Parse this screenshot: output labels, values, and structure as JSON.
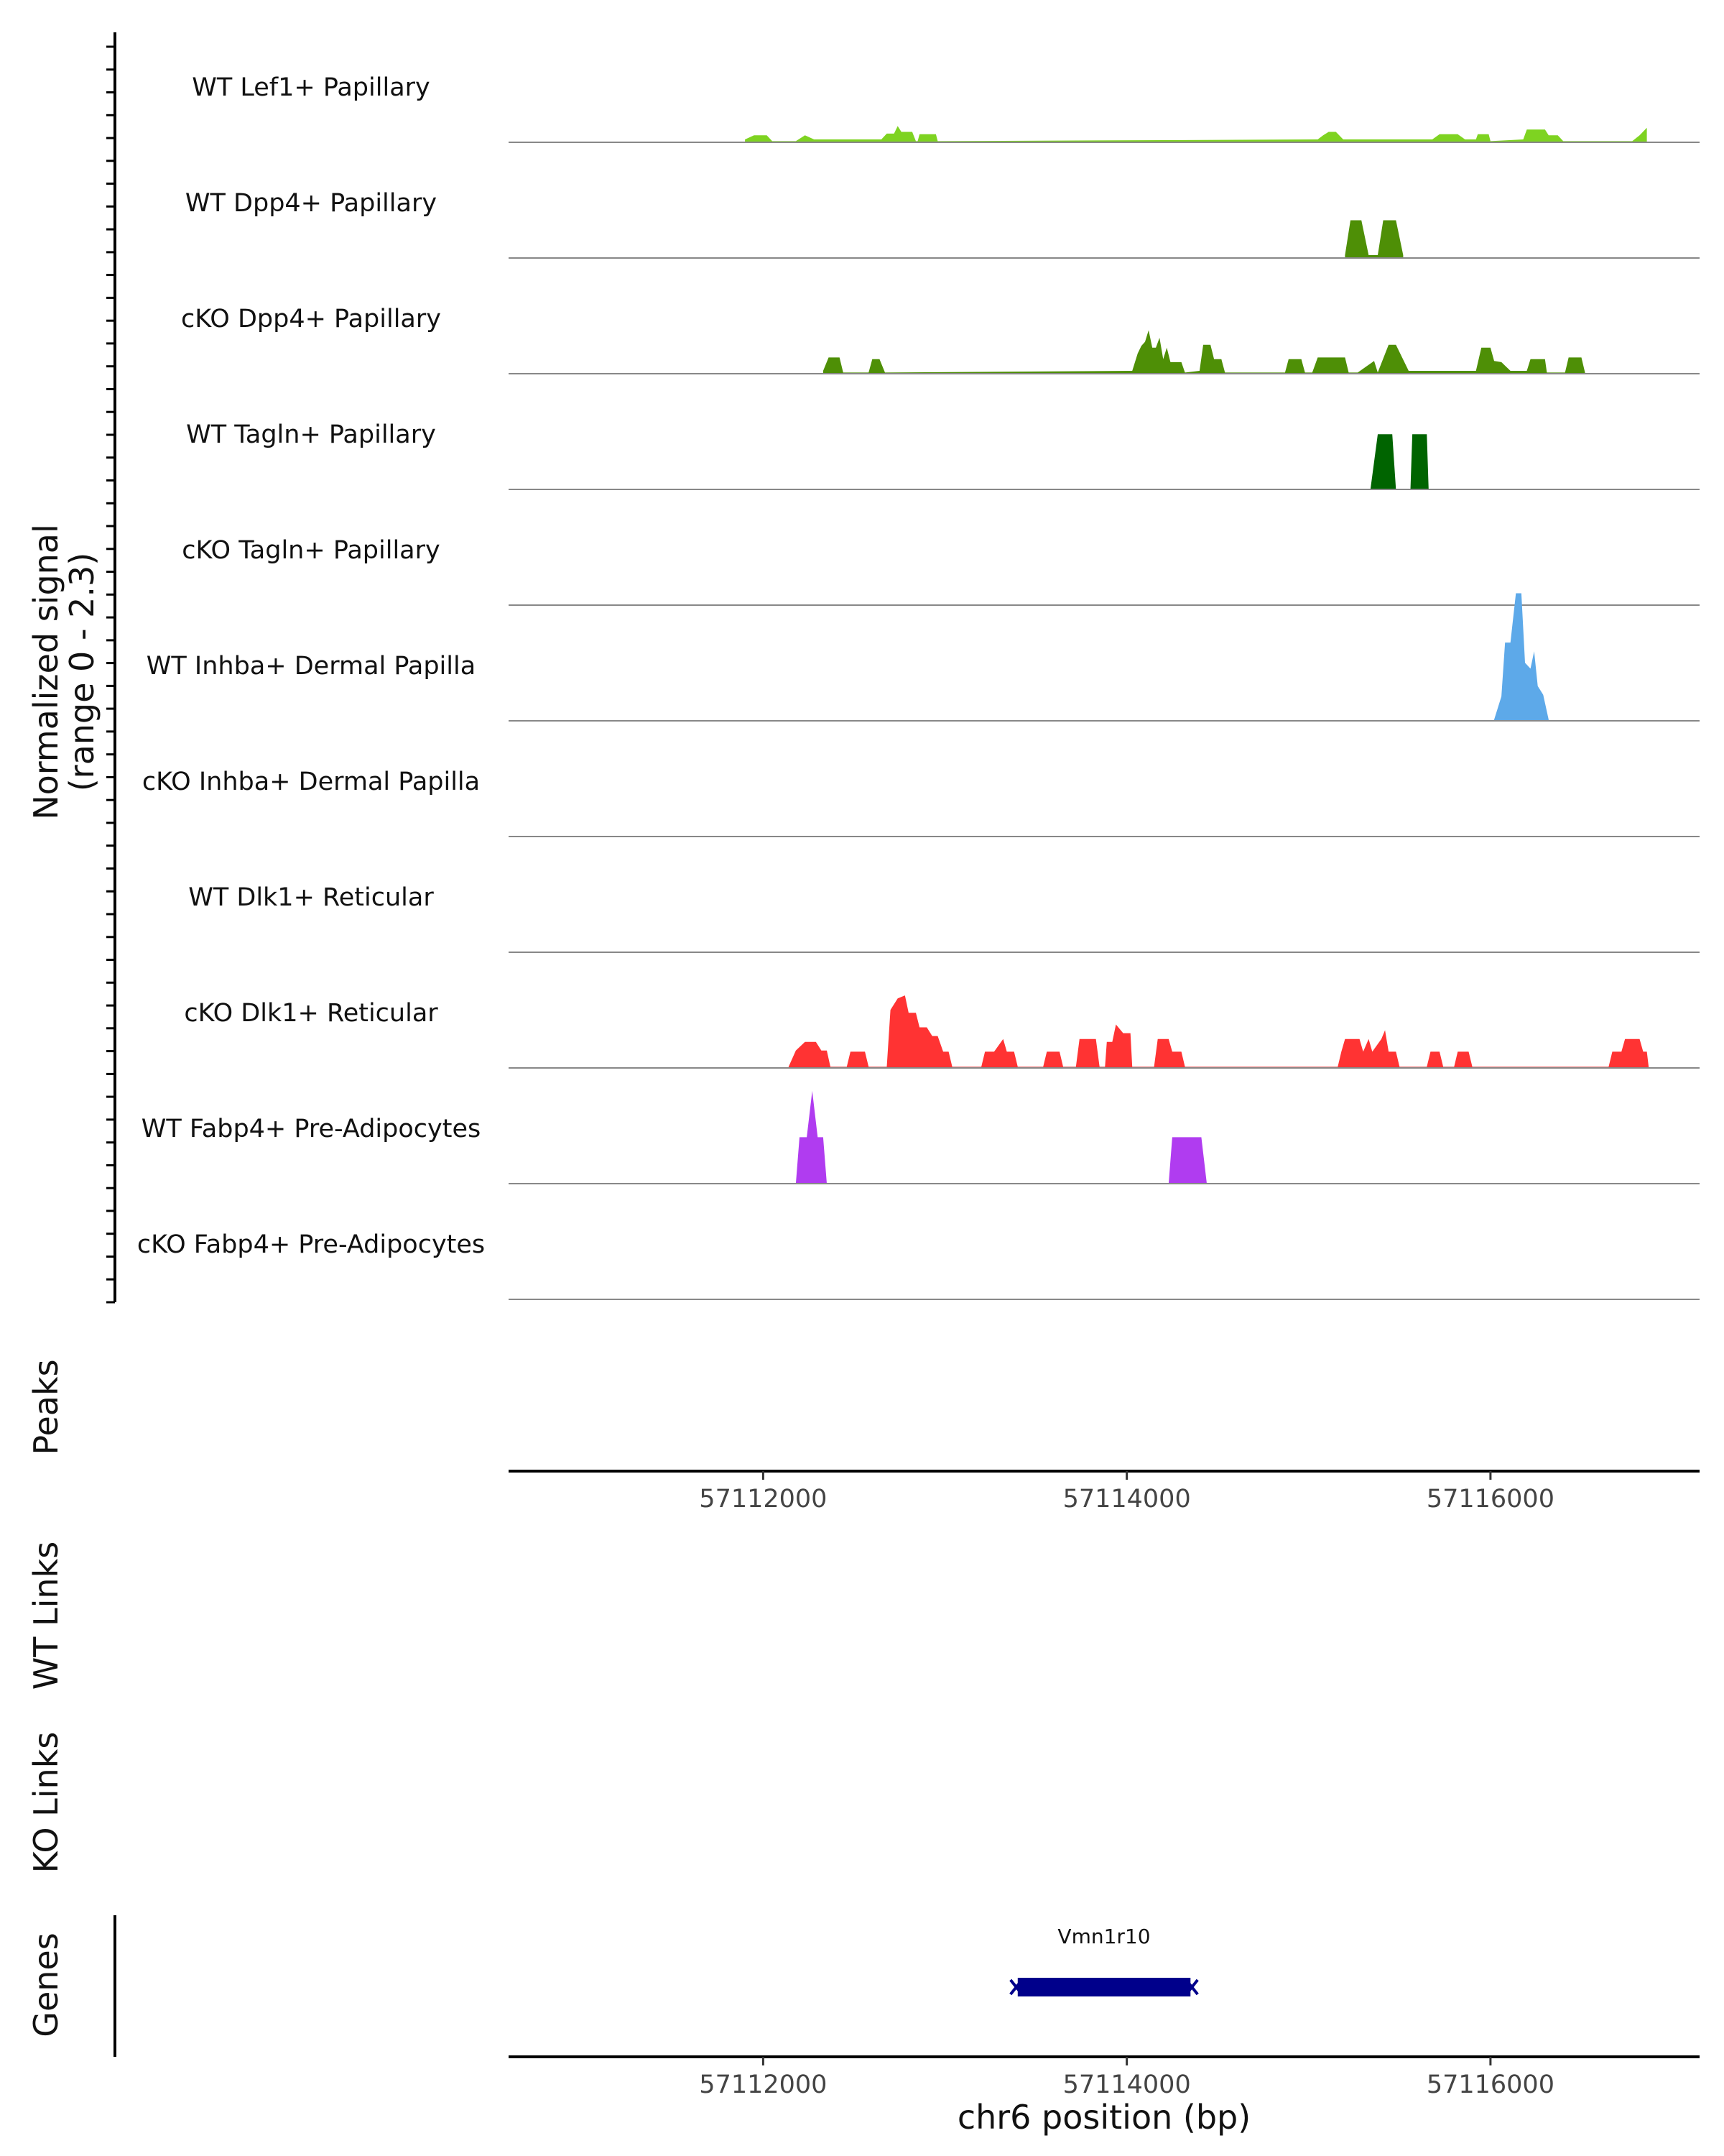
{
  "chart_data": {
    "type": "area",
    "title": "",
    "ylabel": "Normalized signal",
    "ylabel_range": "(range 0 - 2.3)",
    "ylim": [
      0,
      2.3
    ],
    "xlabel": "chr6 position (bp)",
    "xlim": [
      57110600,
      57117150
    ],
    "x_ticks": [
      57112000,
      57114000,
      57116000
    ],
    "x_tick_labels": [
      "57112000",
      "57114000",
      "57116000"
    ],
    "series": [
      {
        "name": "WT Lef1+ Papillary",
        "color": "#7ED321",
        "points": [
          [
            57111900,
            0.05
          ],
          [
            57111950,
            0.12
          ],
          [
            57112020,
            0.12
          ],
          [
            57112050,
            0.02
          ],
          [
            57112180,
            0.02
          ],
          [
            57112230,
            0.12
          ],
          [
            57112280,
            0.05
          ],
          [
            57112650,
            0.05
          ],
          [
            57112680,
            0.15
          ],
          [
            57112720,
            0.15
          ],
          [
            57112740,
            0.28
          ],
          [
            57112760,
            0.18
          ],
          [
            57112820,
            0.18
          ],
          [
            57112840,
            0.02
          ],
          [
            57112850,
            0.02
          ],
          [
            57112860,
            0.14
          ],
          [
            57112950,
            0.14
          ],
          [
            57112960,
            0.02
          ],
          [
            57115050,
            0.05
          ],
          [
            57115080,
            0.12
          ],
          [
            57115110,
            0.18
          ],
          [
            57115150,
            0.18
          ],
          [
            57115190,
            0.05
          ],
          [
            57115680,
            0.05
          ],
          [
            57115720,
            0.14
          ],
          [
            57115820,
            0.14
          ],
          [
            57115860,
            0.05
          ],
          [
            57115920,
            0.05
          ],
          [
            57115930,
            0.14
          ],
          [
            57115990,
            0.14
          ],
          [
            57116000,
            0.02
          ],
          [
            57116180,
            0.05
          ],
          [
            57116200,
            0.22
          ],
          [
            57116300,
            0.22
          ],
          [
            57116320,
            0.12
          ],
          [
            57116370,
            0.12
          ],
          [
            57116400,
            0.02
          ],
          [
            57116780,
            0.02
          ],
          [
            57116820,
            0.12
          ],
          [
            57116860,
            0.25
          ],
          [
            57116860,
            0.0
          ]
        ]
      },
      {
        "name": "WT Dpp4+ Papillary",
        "color": "#4E8F06",
        "points": [
          [
            57115200,
            0.05
          ],
          [
            57115230,
            0.65
          ],
          [
            57115290,
            0.65
          ],
          [
            57115330,
            0.05
          ],
          [
            57115380,
            0.05
          ],
          [
            57115410,
            0.65
          ],
          [
            57115480,
            0.65
          ],
          [
            57115520,
            0.05
          ]
        ]
      },
      {
        "name": "cKO Dpp4+ Papillary",
        "color": "#4E8F06",
        "points": [
          [
            57112330,
            0.05
          ],
          [
            57112360,
            0.28
          ],
          [
            57112420,
            0.28
          ],
          [
            57112440,
            0.02
          ],
          [
            57112580,
            0.02
          ],
          [
            57112600,
            0.25
          ],
          [
            57112640,
            0.25
          ],
          [
            57112670,
            0.02
          ],
          [
            57114030,
            0.05
          ],
          [
            57114060,
            0.35
          ],
          [
            57114080,
            0.48
          ],
          [
            57114100,
            0.55
          ],
          [
            57114120,
            0.75
          ],
          [
            57114140,
            0.45
          ],
          [
            57114160,
            0.45
          ],
          [
            57114180,
            0.62
          ],
          [
            57114200,
            0.25
          ],
          [
            57114220,
            0.45
          ],
          [
            57114240,
            0.2
          ],
          [
            57114300,
            0.2
          ],
          [
            57114320,
            0.02
          ],
          [
            57114400,
            0.05
          ],
          [
            57114420,
            0.5
          ],
          [
            57114460,
            0.5
          ],
          [
            57114480,
            0.25
          ],
          [
            57114520,
            0.25
          ],
          [
            57114540,
            0.02
          ],
          [
            57114870,
            0.02
          ],
          [
            57114890,
            0.25
          ],
          [
            57114960,
            0.25
          ],
          [
            57114980,
            0.02
          ],
          [
            57115020,
            0.02
          ],
          [
            57115050,
            0.28
          ],
          [
            57115200,
            0.28
          ],
          [
            57115220,
            0.02
          ],
          [
            57115270,
            0.02
          ],
          [
            57115360,
            0.22
          ],
          [
            57115380,
            0.02
          ],
          [
            57115390,
            0.1
          ],
          [
            57115440,
            0.5
          ],
          [
            57115480,
            0.5
          ],
          [
            57115550,
            0.05
          ],
          [
            57115920,
            0.05
          ],
          [
            57115950,
            0.45
          ],
          [
            57116000,
            0.45
          ],
          [
            57116020,
            0.22
          ],
          [
            57116060,
            0.2
          ],
          [
            57116110,
            0.05
          ],
          [
            57116200,
            0.05
          ],
          [
            57116220,
            0.25
          ],
          [
            57116300,
            0.25
          ],
          [
            57116310,
            0.02
          ],
          [
            57116410,
            0.02
          ],
          [
            57116430,
            0.28
          ],
          [
            57116500,
            0.28
          ],
          [
            57116520,
            0.02
          ]
        ]
      },
      {
        "name": "WT Tagln+ Papillary",
        "color": "#006400",
        "points": [
          [
            57115340,
            0.0
          ],
          [
            57115380,
            0.95
          ],
          [
            57115460,
            0.95
          ],
          [
            57115480,
            0.0
          ],
          [
            57115560,
            0.0
          ],
          [
            57115570,
            0.95
          ],
          [
            57115650,
            0.95
          ],
          [
            57115660,
            0.0
          ]
        ]
      },
      {
        "name": "cKO Tagln+ Papillary",
        "color": "#2E8B57",
        "points": []
      },
      {
        "name": "WT Inhba+ Dermal Papilla",
        "color": "#5DA9E9",
        "points": [
          [
            57116020,
            0.02
          ],
          [
            57116060,
            0.42
          ],
          [
            57116080,
            1.35
          ],
          [
            57116110,
            1.35
          ],
          [
            57116140,
            2.2
          ],
          [
            57116170,
            2.2
          ],
          [
            57116190,
            1.0
          ],
          [
            57116220,
            0.9
          ],
          [
            57116240,
            1.2
          ],
          [
            57116260,
            0.6
          ],
          [
            57116290,
            0.45
          ],
          [
            57116320,
            0.02
          ]
        ]
      },
      {
        "name": "cKO Inhba+ Dermal Papilla",
        "color": "#5DA9E9",
        "points": []
      },
      {
        "name": "WT Dlk1+ Reticular",
        "color": "#FF3333",
        "points": []
      },
      {
        "name": "cKO Dlk1+ Reticular",
        "color": "#FF3333",
        "points": [
          [
            57112140,
            0.02
          ],
          [
            57112180,
            0.3
          ],
          [
            57112230,
            0.45
          ],
          [
            57112290,
            0.45
          ],
          [
            57112320,
            0.3
          ],
          [
            57112350,
            0.3
          ],
          [
            57112370,
            0.02
          ],
          [
            57112460,
            0.02
          ],
          [
            57112480,
            0.28
          ],
          [
            57112560,
            0.28
          ],
          [
            57112580,
            0.02
          ],
          [
            57112680,
            0.02
          ],
          [
            57112700,
            1.0
          ],
          [
            57112740,
            1.2
          ],
          [
            57112780,
            1.25
          ],
          [
            57112800,
            0.95
          ],
          [
            57112840,
            0.95
          ],
          [
            57112860,
            0.7
          ],
          [
            57112900,
            0.7
          ],
          [
            57112930,
            0.55
          ],
          [
            57112960,
            0.55
          ],
          [
            57112990,
            0.28
          ],
          [
            57113020,
            0.28
          ],
          [
            57113040,
            0.02
          ],
          [
            57113200,
            0.02
          ],
          [
            57113220,
            0.28
          ],
          [
            57113270,
            0.28
          ],
          [
            57113320,
            0.5
          ],
          [
            57113340,
            0.28
          ],
          [
            57113380,
            0.28
          ],
          [
            57113400,
            0.02
          ],
          [
            57113540,
            0.02
          ],
          [
            57113560,
            0.28
          ],
          [
            57113630,
            0.28
          ],
          [
            57113650,
            0.02
          ],
          [
            57113720,
            0.02
          ],
          [
            57113740,
            0.5
          ],
          [
            57113830,
            0.5
          ],
          [
            57113850,
            0.02
          ],
          [
            57113880,
            0.02
          ],
          [
            57113890,
            0.45
          ],
          [
            57113920,
            0.45
          ],
          [
            57113940,
            0.75
          ],
          [
            57113980,
            0.6
          ],
          [
            57114020,
            0.6
          ],
          [
            57114030,
            0.02
          ],
          [
            57114150,
            0.02
          ],
          [
            57114170,
            0.5
          ],
          [
            57114230,
            0.5
          ],
          [
            57114250,
            0.28
          ],
          [
            57114300,
            0.28
          ],
          [
            57114320,
            0.02
          ],
          [
            57115160,
            0.02
          ],
          [
            57115180,
            0.28
          ],
          [
            57115200,
            0.5
          ],
          [
            57115280,
            0.5
          ],
          [
            57115300,
            0.28
          ],
          [
            57115330,
            0.5
          ],
          [
            57115350,
            0.28
          ],
          [
            57115400,
            0.5
          ],
          [
            57115420,
            0.65
          ],
          [
            57115440,
            0.28
          ],
          [
            57115480,
            0.28
          ],
          [
            57115500,
            0.02
          ],
          [
            57115650,
            0.02
          ],
          [
            57115670,
            0.28
          ],
          [
            57115720,
            0.28
          ],
          [
            57115740,
            0.02
          ],
          [
            57115800,
            0.02
          ],
          [
            57115820,
            0.28
          ],
          [
            57115880,
            0.28
          ],
          [
            57115900,
            0.02
          ],
          [
            57116650,
            0.02
          ],
          [
            57116670,
            0.28
          ],
          [
            57116720,
            0.28
          ],
          [
            57116740,
            0.5
          ],
          [
            57116820,
            0.5
          ],
          [
            57116840,
            0.28
          ],
          [
            57116860,
            0.28
          ],
          [
            57116870,
            0.02
          ]
        ]
      },
      {
        "name": "WT Fabp4+ Pre-Adipocytes",
        "color": "#B03CF0",
        "points": [
          [
            57112180,
            0.0
          ],
          [
            57112200,
            0.8
          ],
          [
            57112240,
            0.8
          ],
          [
            57112270,
            1.6
          ],
          [
            57112300,
            0.8
          ],
          [
            57112330,
            0.8
          ],
          [
            57112350,
            0.0
          ],
          [
            57114230,
            0.0
          ],
          [
            57114250,
            0.8
          ],
          [
            57114410,
            0.8
          ],
          [
            57114440,
            0.0
          ]
        ]
      },
      {
        "name": "cKO Fabp4+ Pre-Adipocytes",
        "color": "#9932CC",
        "points": []
      }
    ],
    "peaks": [],
    "wt_links": [],
    "ko_links": [],
    "genes": [
      {
        "name": "Vmn1r10",
        "start": 57113400,
        "end": 57114350,
        "color": "#00008B"
      }
    ],
    "panel_labels": {
      "peaks": "Peaks",
      "wt_links": "WT Links",
      "ko_links": "KO Links",
      "genes": "Genes"
    }
  }
}
